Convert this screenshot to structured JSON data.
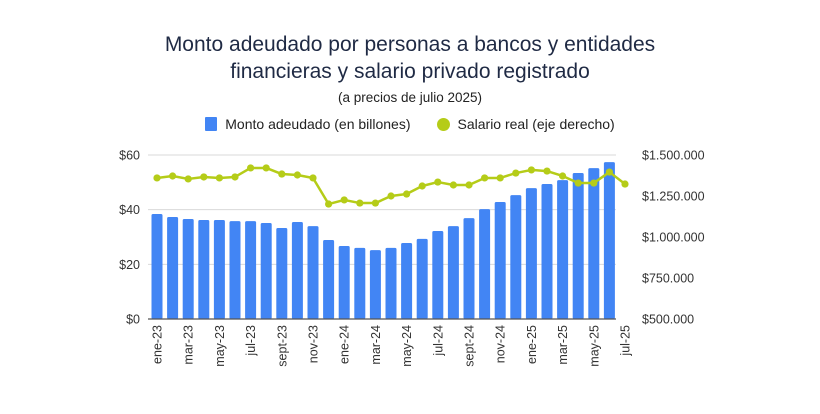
{
  "chart_data": {
    "type": "bar",
    "title": "Monto adeudado por personas a bancos y entidades financieras y salario privado registrado",
    "title_lines": [
      "Monto adeudado por personas a bancos y entidades",
      "financieras y salario privado registrado"
    ],
    "subtitle": "(a precios de julio 2025)",
    "legend": [
      "Monto adeudado (en billones)",
      "Salario real (eje derecho)"
    ],
    "legend_position": "top",
    "grid": true,
    "categories": [
      "ene-23",
      "feb-23",
      "mar-23",
      "abr-23",
      "may-23",
      "jun-23",
      "jul-23",
      "ago-23",
      "sept-23",
      "oct-23",
      "nov-23",
      "dic-23",
      "ene-24",
      "feb-24",
      "mar-24",
      "abr-24",
      "may-24",
      "jun-24",
      "jul-24",
      "ago-24",
      "sept-24",
      "oct-24",
      "nov-24",
      "dic-24",
      "ene-25",
      "feb-25",
      "mar-25",
      "abr-25",
      "may-25",
      "jun-25",
      "jul-25"
    ],
    "x_tick_labels": [
      "ene-23",
      "mar-23",
      "may-23",
      "jul-23",
      "sept-23",
      "nov-23",
      "ene-24",
      "mar-24",
      "may-24",
      "jul-24",
      "sept-24",
      "nov-24",
      "ene-25",
      "mar-25",
      "may-25",
      "jul-25"
    ],
    "series": [
      {
        "name": "Monto adeudado (en billones)",
        "type": "bar",
        "axis": "left",
        "color": "#4285f4",
        "values": [
          38.4,
          37.3,
          36.6,
          36.2,
          36.2,
          35.8,
          35.8,
          35.1,
          33.3,
          35.5,
          34.0,
          28.9,
          26.7,
          26.0,
          25.2,
          26.0,
          27.8,
          29.3,
          32.2,
          34.0,
          36.9,
          40.2,
          42.8,
          45.3,
          47.9,
          49.4,
          50.8,
          53.4,
          55.2,
          57.4,
          null
        ]
      },
      {
        "name": "Salario real (eje derecho)",
        "type": "line",
        "axis": "right",
        "color": "#b5cc18",
        "values": [
          1360000,
          1372000,
          1354000,
          1366000,
          1360000,
          1366000,
          1421000,
          1421000,
          1384000,
          1378000,
          1360000,
          1201000,
          1226000,
          1207000,
          1207000,
          1250000,
          1262000,
          1311000,
          1335000,
          1317000,
          1317000,
          1360000,
          1360000,
          1390000,
          1409000,
          1402000,
          1372000,
          1329000,
          1329000,
          1396000,
          1323000
        ]
      }
    ],
    "left_axis": {
      "ylim": [
        0,
        60
      ],
      "ticks": [
        0,
        20,
        40,
        60
      ],
      "tick_labels": [
        "$0",
        "$20",
        "$40",
        "$60"
      ]
    },
    "right_axis": {
      "ylim": [
        500000,
        1500000
      ],
      "ticks": [
        500000,
        750000,
        1000000,
        1250000,
        1500000
      ],
      "tick_labels": [
        "$500.000",
        "$750.000",
        "$1.000.000",
        "$1.250.000",
        "$1.500.000"
      ]
    },
    "xlabel": "",
    "ylabel": ""
  }
}
